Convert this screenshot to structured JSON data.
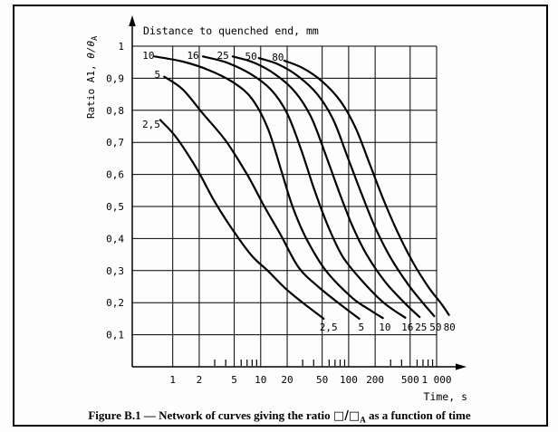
{
  "caption": {
    "prefix": "Figure B.1 — Network of curves giving the ratio ",
    "ratio_symbol": "□/□",
    "ratio_subscript": "A",
    "suffix": " as a function of time"
  },
  "chart_data": {
    "type": "line",
    "x_scale": "log",
    "title": "Distance to quenched end, mm",
    "xlabel": "Time, s",
    "ylabel": {
      "prefix": "Ratio A1, ",
      "symbol": "θ/θ",
      "subscript": "A"
    },
    "xlim": [
      0.45,
      1600
    ],
    "ylim": [
      0,
      1
    ],
    "grid": true,
    "legend_position": "curve-start-and-end-labels",
    "x_ticks": [
      1,
      2,
      5,
      10,
      20,
      50,
      100,
      200,
      500,
      1000
    ],
    "x_tick_labels": [
      "1",
      "2",
      "5",
      "10",
      "20",
      "50",
      "100",
      "200",
      "500",
      "1 000"
    ],
    "x_minor_ticks": [
      3,
      4,
      6,
      7,
      8,
      9,
      30,
      40,
      60,
      70,
      80,
      90,
      300,
      400,
      600,
      700,
      800,
      900
    ],
    "y_ticks": [
      1,
      0.9,
      0.8,
      0.7,
      0.6,
      0.5,
      0.4,
      0.3,
      0.2,
      0.1
    ],
    "y_tick_labels": [
      "1",
      "0,9",
      "0,8",
      "0,7",
      "0,6",
      "0,5",
      "0,4",
      "0,3",
      "0,2",
      "0,1"
    ],
    "colors": {
      "ink": "#000000",
      "background": "#fdfdfd"
    },
    "series": [
      {
        "name": "2,5",
        "distance_mm": 2.5,
        "start_label_at": [
          0.57,
          0.757
        ],
        "end_label_at": [
          59,
          0.124
        ],
        "points": [
          [
            0.72,
            0.77
          ],
          [
            1.1,
            0.715
          ],
          [
            1.9,
            0.615
          ],
          [
            3,
            0.515
          ],
          [
            5,
            0.42
          ],
          [
            8,
            0.345
          ],
          [
            12,
            0.3
          ],
          [
            19,
            0.245
          ],
          [
            30,
            0.2
          ],
          [
            52,
            0.15
          ]
        ]
      },
      {
        "name": "5",
        "distance_mm": 5,
        "start_label_at": [
          0.67,
          0.912
        ],
        "end_label_at": [
          139,
          0.124
        ],
        "points": [
          [
            0.8,
            0.905
          ],
          [
            1.3,
            0.865
          ],
          [
            2.2,
            0.79
          ],
          [
            4,
            0.705
          ],
          [
            7,
            0.6
          ],
          [
            11,
            0.5
          ],
          [
            17,
            0.41
          ],
          [
            27,
            0.31
          ],
          [
            45,
            0.25
          ],
          [
            80,
            0.195
          ],
          [
            132,
            0.15
          ]
        ]
      },
      {
        "name": "10",
        "distance_mm": 10,
        "start_label_at": [
          0.53,
          0.972
        ],
        "end_label_at": [
          258,
          0.124
        ],
        "points": [
          [
            0.62,
            0.968
          ],
          [
            1.3,
            0.952
          ],
          [
            2.6,
            0.925
          ],
          [
            5,
            0.885
          ],
          [
            8,
            0.835
          ],
          [
            12,
            0.745
          ],
          [
            17,
            0.615
          ],
          [
            23,
            0.5
          ],
          [
            33,
            0.4
          ],
          [
            55,
            0.3
          ],
          [
            110,
            0.215
          ],
          [
            180,
            0.175
          ],
          [
            245,
            0.152
          ]
        ]
      },
      {
        "name": "16",
        "distance_mm": 16,
        "start_label_at": [
          1.7,
          0.972
        ],
        "end_label_at": [
          465,
          0.124
        ],
        "points": [
          [
            2.2,
            0.968
          ],
          [
            4,
            0.95
          ],
          [
            7.5,
            0.915
          ],
          [
            13,
            0.865
          ],
          [
            20,
            0.79
          ],
          [
            29,
            0.675
          ],
          [
            41,
            0.55
          ],
          [
            58,
            0.44
          ],
          [
            85,
            0.345
          ],
          [
            140,
            0.27
          ],
          [
            250,
            0.2
          ],
          [
            440,
            0.153
          ]
        ]
      },
      {
        "name": "25",
        "distance_mm": 25,
        "start_label_at": [
          3.72,
          0.972
        ],
        "end_label_at": [
          665,
          0.124
        ],
        "points": [
          [
            4.8,
            0.968
          ],
          [
            8.5,
            0.948
          ],
          [
            15,
            0.91
          ],
          [
            25,
            0.855
          ],
          [
            38,
            0.775
          ],
          [
            55,
            0.66
          ],
          [
            78,
            0.545
          ],
          [
            110,
            0.44
          ],
          [
            160,
            0.35
          ],
          [
            260,
            0.265
          ],
          [
            430,
            0.2
          ],
          [
            640,
            0.155
          ]
        ]
      },
      {
        "name": "50",
        "distance_mm": 50,
        "start_label_at": [
          7.76,
          0.969
        ],
        "end_label_at": [
          975,
          0.124
        ],
        "points": [
          [
            9.5,
            0.963
          ],
          [
            16,
            0.943
          ],
          [
            27,
            0.905
          ],
          [
            44,
            0.85
          ],
          [
            67,
            0.77
          ],
          [
            97,
            0.655
          ],
          [
            140,
            0.54
          ],
          [
            200,
            0.435
          ],
          [
            300,
            0.34
          ],
          [
            480,
            0.255
          ],
          [
            720,
            0.195
          ],
          [
            940,
            0.158
          ]
        ]
      },
      {
        "name": "80",
        "distance_mm": 80,
        "start_label_at": [
          15.7,
          0.966
        ],
        "end_label_at": [
          1400,
          0.124
        ],
        "points": [
          [
            18.5,
            0.955
          ],
          [
            30,
            0.932
          ],
          [
            50,
            0.89
          ],
          [
            80,
            0.83
          ],
          [
            120,
            0.745
          ],
          [
            175,
            0.63
          ],
          [
            250,
            0.52
          ],
          [
            360,
            0.42
          ],
          [
            540,
            0.325
          ],
          [
            800,
            0.25
          ],
          [
            1120,
            0.198
          ],
          [
            1380,
            0.162
          ]
        ]
      }
    ]
  }
}
